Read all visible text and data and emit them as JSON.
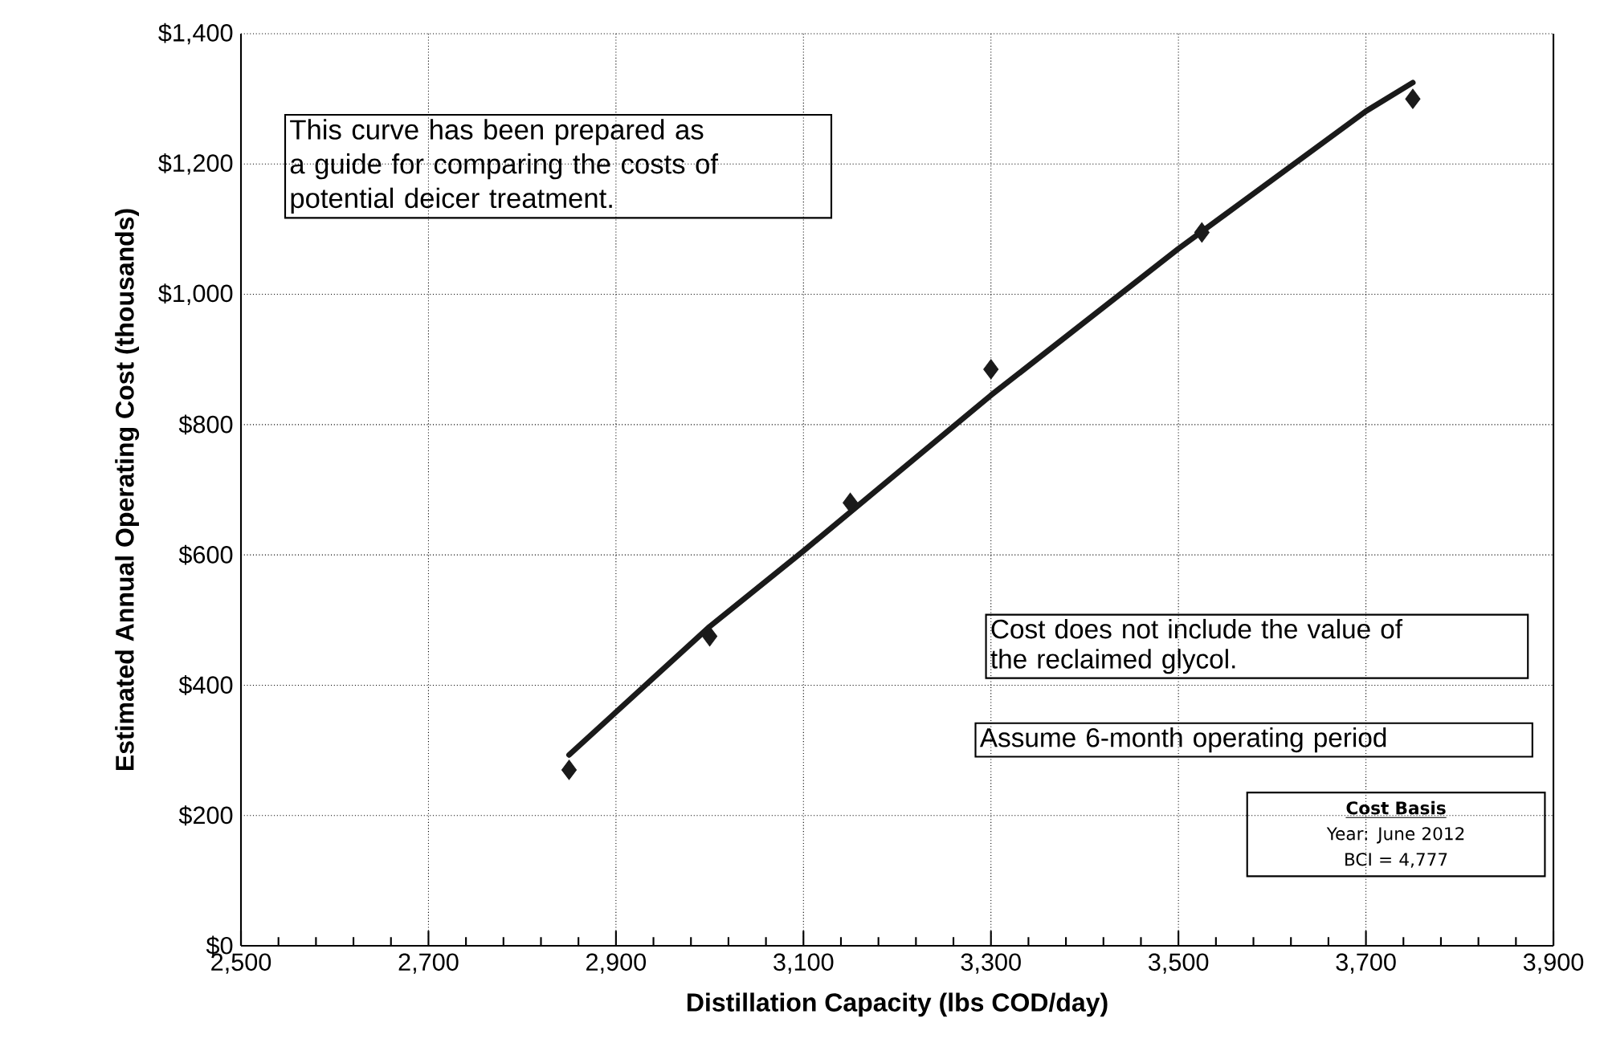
{
  "chart_data": {
    "type": "scatter",
    "xlabel": "Distillation Capacity (lbs COD/day)",
    "ylabel": "Estimated Annual Operating Cost (thousands)",
    "xlim": [
      2500,
      3900
    ],
    "ylim": [
      0,
      1400
    ],
    "xticks": [
      {
        "value": 2500,
        "label": "2,500"
      },
      {
        "value": 2700,
        "label": "2,700"
      },
      {
        "value": 2900,
        "label": "2,900"
      },
      {
        "value": 3100,
        "label": "3,100"
      },
      {
        "value": 3300,
        "label": "3,300"
      },
      {
        "value": 3500,
        "label": "3,500"
      },
      {
        "value": 3700,
        "label": "3,700"
      },
      {
        "value": 3900,
        "label": "3,900"
      }
    ],
    "yticks": [
      {
        "value": 0,
        "label": "$0"
      },
      {
        "value": 200,
        "label": "$200"
      },
      {
        "value": 400,
        "label": "$400"
      },
      {
        "value": 600,
        "label": "$600"
      },
      {
        "value": 800,
        "label": "$800"
      },
      {
        "value": 1000,
        "label": "$1,000"
      },
      {
        "value": 1200,
        "label": "$1,200"
      },
      {
        "value": 1400,
        "label": "$1,400"
      }
    ],
    "grid": true,
    "series": [
      {
        "type": "line",
        "color": "#1a1a1a",
        "line_style": "solid",
        "x": [
          2850,
          3000,
          3100,
          3300,
          3500,
          3700,
          3750
        ],
        "values": [
          293,
          490,
          606,
          845,
          1070,
          1281,
          1325
        ]
      },
      {
        "type": "scatter",
        "color": "#1a1a1a",
        "marker": "diamond",
        "x": [
          2850,
          3000,
          3150,
          3300,
          3525,
          3750
        ],
        "values": [
          270,
          475,
          680,
          885,
          1095,
          1300
        ]
      }
    ],
    "annotations": [
      "This curve has been prepared as a guide for comparing the costs of potential deicer treatment.",
      "Cost does not include the value of the reclaimed glycol.",
      "Assume 6-month operating period",
      "Cost Basis",
      "Year: June 2012",
      "BCI = 4,777"
    ]
  }
}
